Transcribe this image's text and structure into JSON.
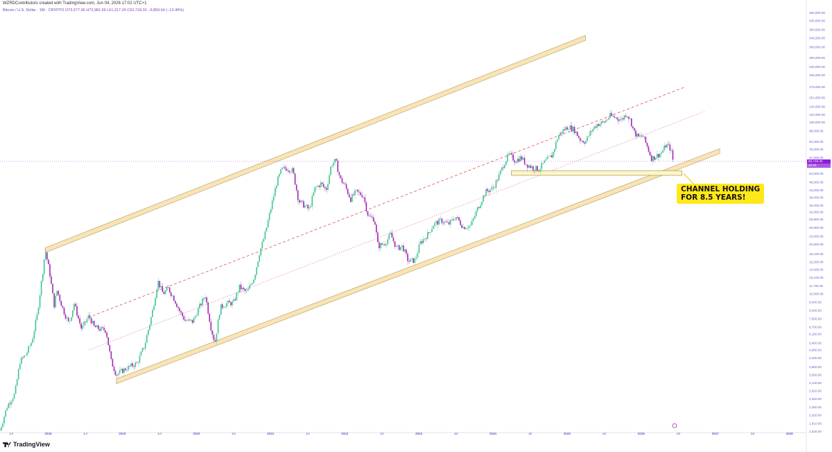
{
  "header": {
    "creator_line": "WZRDContributors created with TradingView.com, Jun 04, 2026 17:02 UTC+1",
    "symbol": "Bitcoin / U.S. Dollar · 1W · CRYPTO",
    "ohlc": "O73,577.96  H73,981.69  L61,317.24  C63,718.32  −9,859.64 (−13.40%)"
  },
  "price_tag": {
    "last": "63,718.32",
    "countdown": "2d 6h"
  },
  "callout": {
    "line1": "CHANNEL HOLDING",
    "line2": "FOR 8.5 YEARS!"
  },
  "logo_text": "TradingView",
  "colors": {
    "up": "#26a69a",
    "up_light": "#3bc48b",
    "down": "#9c27b0",
    "channel_fill": "#fbe3b4",
    "channel_edge": "#a89f6a",
    "dashed_red": "#e05050",
    "dotted_red": "#d4507a",
    "axis_text": "#6a5acd",
    "callout_bg": "#ffe81a"
  },
  "chart_data": {
    "type": "candlestick",
    "scale": "log",
    "y_tick_labels": [
      "1,625.00",
      "1,810.00",
      "2,020.00",
      "2,260.00",
      "2,520.00",
      "2,820.00",
      "3,140.00",
      "3,500.00",
      "3,900.00",
      "4,400.00",
      "4,900.00",
      "5,400.00",
      "6,100.00",
      "6,700.00",
      "7,500.00",
      "8,400.00",
      "9,400.00",
      "10,500.00",
      "11,700.00",
      "13,100.00",
      "14,600.00",
      "16,200.00",
      "18,100.00",
      "20,600.00",
      "23,000.00",
      "25,800.00",
      "28,900.00",
      "32,000.00",
      "35,000.00",
      "39,000.00",
      "43,000.00",
      "48,000.00",
      "54,000.00",
      "60,000.00",
      "67,000.00",
      "75,000.00",
      "83,000.00",
      "96,000.00",
      "108,000.00",
      "120,000.00",
      "134,000.00",
      "151,000.00",
      "175,000.00",
      "205,000.00",
      "230,000.00",
      "260,000.00",
      "300,000.00",
      "340,000.00",
      "380,000.00",
      "430,000.00",
      "480,000.00"
    ],
    "x_tick_labels": [
      "Jul",
      "2018",
      "Jul",
      "2019",
      "Jul",
      "2020",
      "Jul",
      "2021",
      "Jul",
      "2022",
      "Jul",
      "2023",
      "Jul",
      "2024",
      "Jul",
      "2025",
      "Jul",
      "2026",
      "Jul",
      "2027",
      "Jul",
      "2028"
    ],
    "x_tick_dates": [
      2017.5,
      2018.0,
      2018.5,
      2019.0,
      2019.5,
      2020.0,
      2020.5,
      2021.0,
      2021.5,
      2022.0,
      2022.5,
      2023.0,
      2023.5,
      2024.0,
      2024.5,
      2025.0,
      2025.5,
      2026.0,
      2026.5,
      2027.0,
      2027.5,
      2028.0
    ],
    "x_range": [
      2017.35,
      2028.2
    ],
    "y_range": [
      1625,
      480000
    ],
    "price_path": [
      [
        2017.35,
        1650
      ],
      [
        2017.45,
        2300
      ],
      [
        2017.55,
        2700
      ],
      [
        2017.62,
        4200
      ],
      [
        2017.7,
        4600
      ],
      [
        2017.78,
        5500
      ],
      [
        2017.85,
        7800
      ],
      [
        2017.92,
        13500
      ],
      [
        2017.96,
        19000
      ],
      [
        2018.02,
        14000
      ],
      [
        2018.08,
        9000
      ],
      [
        2018.12,
        11000
      ],
      [
        2018.2,
        8500
      ],
      [
        2018.28,
        7000
      ],
      [
        2018.35,
        9200
      ],
      [
        2018.45,
        6500
      ],
      [
        2018.55,
        7800
      ],
      [
        2018.62,
        6700
      ],
      [
        2018.7,
        6500
      ],
      [
        2018.78,
        6400
      ],
      [
        2018.85,
        4200
      ],
      [
        2018.92,
        3500
      ],
      [
        2019.0,
        3700
      ],
      [
        2019.1,
        3900
      ],
      [
        2019.2,
        4100
      ],
      [
        2019.3,
        5200
      ],
      [
        2019.4,
        8000
      ],
      [
        2019.48,
        12500
      ],
      [
        2019.55,
        10500
      ],
      [
        2019.62,
        11300
      ],
      [
        2019.7,
        9800
      ],
      [
        2019.78,
        8200
      ],
      [
        2019.85,
        7300
      ],
      [
        2019.95,
        7200
      ],
      [
        2020.05,
        9000
      ],
      [
        2020.12,
        10300
      ],
      [
        2020.2,
        6500
      ],
      [
        2020.25,
        5400
      ],
      [
        2020.32,
        8700
      ],
      [
        2020.4,
        9200
      ],
      [
        2020.5,
        9300
      ],
      [
        2020.58,
        11500
      ],
      [
        2020.68,
        10700
      ],
      [
        2020.78,
        13200
      ],
      [
        2020.85,
        18300
      ],
      [
        2020.92,
        23000
      ],
      [
        2021.0,
        33000
      ],
      [
        2021.08,
        47000
      ],
      [
        2021.15,
        57000
      ],
      [
        2021.22,
        58000
      ],
      [
        2021.3,
        56000
      ],
      [
        2021.38,
        37000
      ],
      [
        2021.45,
        35000
      ],
      [
        2021.52,
        33000
      ],
      [
        2021.6,
        44000
      ],
      [
        2021.68,
        47000
      ],
      [
        2021.75,
        43000
      ],
      [
        2021.82,
        61000
      ],
      [
        2021.88,
        64000
      ],
      [
        2021.94,
        50000
      ],
      [
        2022.0,
        46000
      ],
      [
        2022.08,
        38000
      ],
      [
        2022.15,
        42000
      ],
      [
        2022.25,
        40000
      ],
      [
        2022.32,
        30000
      ],
      [
        2022.4,
        29000
      ],
      [
        2022.45,
        20000
      ],
      [
        2022.55,
        21000
      ],
      [
        2022.62,
        23500
      ],
      [
        2022.7,
        19500
      ],
      [
        2022.78,
        20000
      ],
      [
        2022.86,
        16300
      ],
      [
        2022.95,
        16600
      ],
      [
        2023.02,
        21000
      ],
      [
        2023.12,
        23500
      ],
      [
        2023.2,
        27000
      ],
      [
        2023.3,
        28500
      ],
      [
        2023.4,
        27000
      ],
      [
        2023.5,
        30000
      ],
      [
        2023.6,
        26000
      ],
      [
        2023.7,
        26500
      ],
      [
        2023.8,
        34000
      ],
      [
        2023.9,
        42000
      ],
      [
        2024.0,
        44000
      ],
      [
        2024.08,
        52000
      ],
      [
        2024.15,
        62000
      ],
      [
        2024.22,
        70000
      ],
      [
        2024.3,
        64000
      ],
      [
        2024.38,
        67000
      ],
      [
        2024.45,
        61000
      ],
      [
        2024.55,
        58000
      ],
      [
        2024.62,
        57000
      ],
      [
        2024.7,
        63000
      ],
      [
        2024.8,
        69000
      ],
      [
        2024.88,
        90000
      ],
      [
        2024.95,
        97000
      ],
      [
        2025.02,
        102000
      ],
      [
        2025.1,
        97000
      ],
      [
        2025.18,
        85000
      ],
      [
        2025.25,
        83000
      ],
      [
        2025.32,
        95000
      ],
      [
        2025.4,
        105000
      ],
      [
        2025.5,
        108000
      ],
      [
        2025.58,
        118000
      ],
      [
        2025.66,
        115000
      ],
      [
        2025.74,
        112000
      ],
      [
        2025.8,
        122000
      ],
      [
        2025.86,
        110000
      ],
      [
        2025.9,
        95000
      ],
      [
        2025.96,
        88000
      ],
      [
        2026.02,
        90000
      ],
      [
        2026.08,
        78000
      ],
      [
        2026.14,
        66000
      ],
      [
        2026.2,
        68000
      ],
      [
        2026.28,
        72000
      ],
      [
        2026.34,
        80000
      ],
      [
        2026.4,
        75000
      ],
      [
        2026.43,
        63718
      ]
    ],
    "channel": {
      "upper": [
        [
          2017.96,
          19000
        ],
        [
          2025.25,
          340000
        ]
      ],
      "lower": [
        [
          2018.92,
          3200
        ],
        [
          2027.06,
          73000
        ]
      ],
      "dashed_midline": [
        [
          2018.6,
          7800
        ],
        [
          2026.6,
          175000
        ]
      ],
      "dotted_midline": [
        [
          2018.55,
          4900
        ],
        [
          2026.85,
          125000
        ]
      ]
    },
    "support_zone": [
      [
        2024.25,
        52500
      ],
      [
        2026.55,
        56000
      ]
    ],
    "last_price": 63718.32
  }
}
